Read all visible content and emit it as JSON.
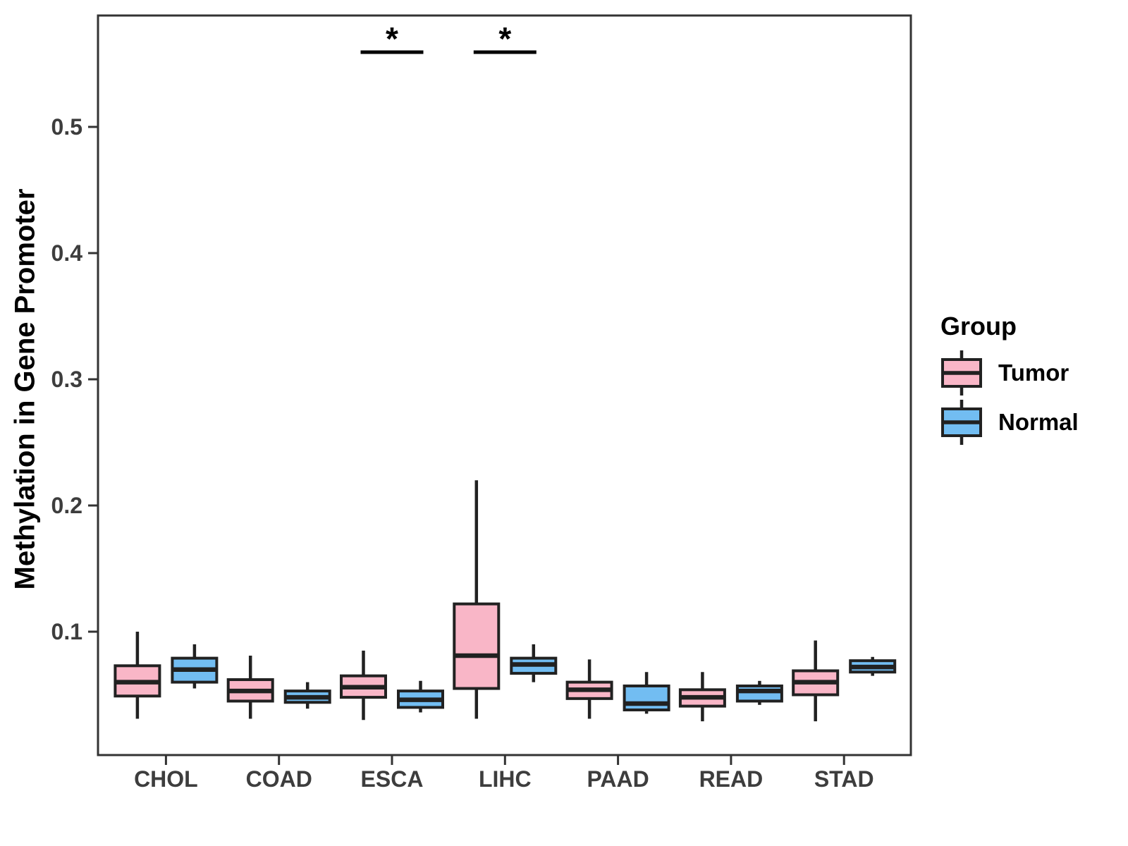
{
  "figure": {
    "background": "#FFFFFF"
  },
  "legend": {
    "title": "Group",
    "items": [
      {
        "label": "Tumor",
        "color": "#F9B6C7"
      },
      {
        "label": "Normal",
        "color": "#72BDF2"
      }
    ]
  },
  "styles": {
    "box_border": "#212121",
    "median_color": "#212121",
    "whisker_color": "#212121",
    "panel_border": "#333333",
    "tick_color": "#333333",
    "tick_label_color": "#3D3D3D",
    "significance_color": "#000000",
    "background": "#FFFFFF"
  },
  "chart_data": {
    "type": "boxplot",
    "title": "",
    "xlabel": "",
    "ylabel": "Methylation in Gene Promoter",
    "categories": [
      "CHOL",
      "COAD",
      "ESCA",
      "LIHC",
      "PAAD",
      "READ",
      "STAD"
    ],
    "y_ticks": [
      0.1,
      0.2,
      0.3,
      0.4,
      0.5
    ],
    "y_tick_labels": [
      "0.1",
      "0.2",
      "0.3",
      "0.4",
      "0.5"
    ],
    "ylim": [
      0.0,
      0.59
    ],
    "grid": false,
    "legend_position": "right",
    "series": [
      {
        "name": "Tumor",
        "color": "#F9B6C7",
        "boxes": [
          {
            "category": "CHOL",
            "whisker_low": 0.031,
            "q1": 0.049,
            "median": 0.06,
            "q3": 0.073,
            "whisker_high": 0.1
          },
          {
            "category": "COAD",
            "whisker_low": 0.031,
            "q1": 0.045,
            "median": 0.053,
            "q3": 0.062,
            "whisker_high": 0.081
          },
          {
            "category": "ESCA",
            "whisker_low": 0.03,
            "q1": 0.048,
            "median": 0.056,
            "q3": 0.065,
            "whisker_high": 0.085
          },
          {
            "category": "LIHC",
            "whisker_low": 0.031,
            "q1": 0.055,
            "median": 0.081,
            "q3": 0.122,
            "whisker_high": 0.22
          },
          {
            "category": "PAAD",
            "whisker_low": 0.031,
            "q1": 0.047,
            "median": 0.054,
            "q3": 0.06,
            "whisker_high": 0.078
          },
          {
            "category": "READ",
            "whisker_low": 0.029,
            "q1": 0.041,
            "median": 0.048,
            "q3": 0.054,
            "whisker_high": 0.068
          },
          {
            "category": "STAD",
            "whisker_low": 0.029,
            "q1": 0.05,
            "median": 0.06,
            "q3": 0.069,
            "whisker_high": 0.093
          }
        ]
      },
      {
        "name": "Normal",
        "color": "#72BDF2",
        "boxes": [
          {
            "category": "CHOL",
            "whisker_low": 0.055,
            "q1": 0.06,
            "median": 0.07,
            "q3": 0.079,
            "whisker_high": 0.09
          },
          {
            "category": "COAD",
            "whisker_low": 0.039,
            "q1": 0.044,
            "median": 0.048,
            "q3": 0.053,
            "whisker_high": 0.06
          },
          {
            "category": "ESCA",
            "whisker_low": 0.036,
            "q1": 0.04,
            "median": 0.046,
            "q3": 0.053,
            "whisker_high": 0.061
          },
          {
            "category": "LIHC",
            "whisker_low": 0.06,
            "q1": 0.067,
            "median": 0.074,
            "q3": 0.079,
            "whisker_high": 0.09
          },
          {
            "category": "PAAD",
            "whisker_low": 0.035,
            "q1": 0.038,
            "median": 0.043,
            "q3": 0.057,
            "whisker_high": 0.068
          },
          {
            "category": "READ",
            "whisker_low": 0.042,
            "q1": 0.045,
            "median": 0.053,
            "q3": 0.057,
            "whisker_high": 0.061
          },
          {
            "category": "STAD",
            "whisker_low": 0.065,
            "q1": 0.068,
            "median": 0.072,
            "q3": 0.077,
            "whisker_high": 0.08
          }
        ]
      }
    ],
    "significance": [
      {
        "category": "ESCA",
        "label": "*"
      },
      {
        "category": "LIHC",
        "label": "*"
      }
    ]
  }
}
